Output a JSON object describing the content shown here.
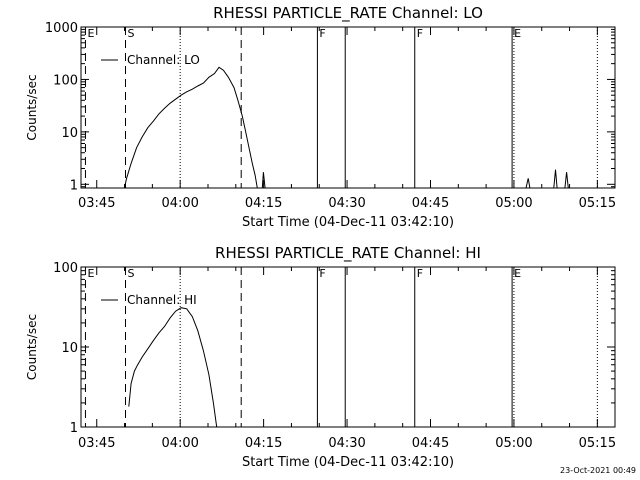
{
  "footer": "23-Oct-2021 00:49",
  "colors": {
    "background": "#ffffff",
    "ink": "#000000"
  },
  "chart_data": [
    {
      "type": "line",
      "title": "RHESSI PARTICLE_RATE Channel: LO",
      "xlabel": "Start Time (04-Dec-11 03:42:10)",
      "ylabel": "Counts/sec",
      "x_unit": "minutes from 03:42:10",
      "xlim": [
        0,
        96
      ],
      "ylim": [
        0.85,
        1000
      ],
      "yscale": "log",
      "grid": false,
      "legend_position": "top-left",
      "x_ticks": [
        {
          "x": 2.83,
          "label": "03:45"
        },
        {
          "x": 17.83,
          "label": "04:00"
        },
        {
          "x": 32.83,
          "label": "04:15"
        },
        {
          "x": 47.83,
          "label": "04:30"
        },
        {
          "x": 62.83,
          "label": "04:45"
        },
        {
          "x": 77.83,
          "label": "05:00"
        },
        {
          "x": 92.83,
          "label": "05:15"
        }
      ],
      "y_ticks": [
        {
          "y": 1,
          "label": "1"
        },
        {
          "y": 10,
          "label": "10"
        },
        {
          "y": 100,
          "label": "100"
        },
        {
          "y": 1000,
          "label": "1000"
        }
      ],
      "markers": [
        {
          "x": 0.8,
          "style": "dashed",
          "label": "E"
        },
        {
          "x": 8.0,
          "style": "dashed",
          "label": "S"
        },
        {
          "x": 17.83,
          "style": "dotted",
          "label": ""
        },
        {
          "x": 28.8,
          "style": "dashed",
          "label": ""
        },
        {
          "x": 42.5,
          "style": "solid",
          "label": "F"
        },
        {
          "x": 47.5,
          "style": "solid",
          "label": ""
        },
        {
          "x": 60.0,
          "style": "solid",
          "label": "F"
        },
        {
          "x": 77.5,
          "style": "solid",
          "label": "E"
        },
        {
          "x": 77.83,
          "style": "dotted",
          "label": ""
        },
        {
          "x": 92.83,
          "style": "dotted",
          "label": ""
        }
      ],
      "series": [
        {
          "name": "Channel: LO",
          "segments": [
            [
              [
                7.8,
                0.85
              ],
              [
                8.2,
                1.3
              ],
              [
                9.0,
                2.5
              ],
              [
                10.0,
                5
              ],
              [
                11.0,
                8
              ],
              [
                12.0,
                12
              ],
              [
                13.0,
                16
              ],
              [
                14.0,
                22
              ],
              [
                15.0,
                28
              ],
              [
                16.0,
                35
              ],
              [
                17.0,
                42
              ],
              [
                18.0,
                50
              ],
              [
                19.0,
                58
              ],
              [
                20.0,
                65
              ],
              [
                21.0,
                75
              ],
              [
                22.0,
                85
              ],
              [
                23.0,
                110
              ],
              [
                24.0,
                130
              ],
              [
                24.8,
                170
              ],
              [
                25.6,
                150
              ],
              [
                26.5,
                110
              ],
              [
                27.5,
                70
              ],
              [
                28.2,
                40
              ],
              [
                29.0,
                20
              ],
              [
                29.6,
                10
              ],
              [
                30.2,
                5
              ],
              [
                30.8,
                2.5
              ],
              [
                31.3,
                1.5
              ],
              [
                31.7,
                0.85
              ]
            ],
            [
              [
                32.6,
                0.85
              ],
              [
                32.8,
                1.7
              ],
              [
                33.1,
                0.85
              ]
            ],
            [
              [
                80.0,
                0.85
              ],
              [
                80.4,
                1.3
              ],
              [
                80.7,
                0.85
              ]
            ],
            [
              [
                85.0,
                0.85
              ],
              [
                85.3,
                1.9
              ],
              [
                85.6,
                0.85
              ]
            ],
            [
              [
                87.0,
                0.85
              ],
              [
                87.3,
                1.7
              ],
              [
                87.6,
                0.85
              ]
            ]
          ]
        }
      ]
    },
    {
      "type": "line",
      "title": "RHESSI PARTICLE_RATE Channel: HI",
      "xlabel": "Start Time (04-Dec-11 03:42:10)",
      "ylabel": "Counts/sec",
      "x_unit": "minutes from 03:42:10",
      "xlim": [
        0,
        96
      ],
      "ylim": [
        1,
        100
      ],
      "yscale": "log",
      "grid": false,
      "legend_position": "top-left",
      "x_ticks": [
        {
          "x": 2.83,
          "label": "03:45"
        },
        {
          "x": 17.83,
          "label": "04:00"
        },
        {
          "x": 32.83,
          "label": "04:15"
        },
        {
          "x": 47.83,
          "label": "04:30"
        },
        {
          "x": 62.83,
          "label": "04:45"
        },
        {
          "x": 77.83,
          "label": "05:00"
        },
        {
          "x": 92.83,
          "label": "05:15"
        }
      ],
      "y_ticks": [
        {
          "y": 1,
          "label": "1"
        },
        {
          "y": 10,
          "label": "10"
        },
        {
          "y": 100,
          "label": "100"
        }
      ],
      "markers": [
        {
          "x": 0.8,
          "style": "dashed",
          "label": "E"
        },
        {
          "x": 8.0,
          "style": "dashed",
          "label": "S"
        },
        {
          "x": 17.83,
          "style": "dotted",
          "label": ""
        },
        {
          "x": 28.8,
          "style": "dashed",
          "label": ""
        },
        {
          "x": 42.5,
          "style": "solid",
          "label": "F"
        },
        {
          "x": 47.5,
          "style": "solid",
          "label": ""
        },
        {
          "x": 60.0,
          "style": "solid",
          "label": "F"
        },
        {
          "x": 77.5,
          "style": "solid",
          "label": "E"
        },
        {
          "x": 77.83,
          "style": "dotted",
          "label": ""
        },
        {
          "x": 92.83,
          "style": "dotted",
          "label": ""
        }
      ],
      "series": [
        {
          "name": "Channel: HI",
          "segments": [
            [
              [
                8.6,
                1.8
              ],
              [
                9.0,
                3.5
              ],
              [
                9.6,
                5
              ],
              [
                10.2,
                6
              ],
              [
                11.0,
                7.5
              ],
              [
                12.0,
                9.5
              ],
              [
                13.0,
                12
              ],
              [
                14.0,
                15
              ],
              [
                15.0,
                18
              ],
              [
                16.0,
                23
              ],
              [
                17.0,
                28
              ],
              [
                18.0,
                31
              ],
              [
                19.0,
                30
              ],
              [
                20.0,
                24
              ],
              [
                21.0,
                16
              ],
              [
                22.0,
                9
              ],
              [
                23.0,
                4.5
              ],
              [
                23.8,
                2
              ],
              [
                24.4,
                1
              ]
            ]
          ]
        }
      ]
    }
  ]
}
